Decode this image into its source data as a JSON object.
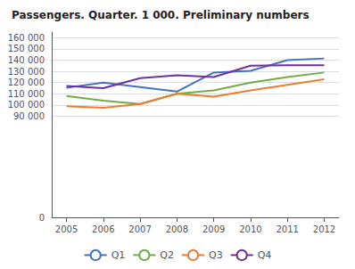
{
  "chart_data": {
    "type": "line",
    "title": "Passengers. Quarter. 1 000. Preliminary numbers",
    "x": [
      2005,
      2006,
      2007,
      2008,
      2009,
      2010,
      2011,
      2012
    ],
    "xlim": [
      2004.6,
      2012.4
    ],
    "xticks": [
      2005,
      2006,
      2007,
      2008,
      2009,
      2010,
      2011,
      2012
    ],
    "ylim": [
      0,
      165000
    ],
    "yticks": [
      0,
      {
        "value": 90000,
        "label": "90 000"
      },
      {
        "value": 100000,
        "label": "100 000"
      },
      {
        "value": 110000,
        "label": "110 000"
      },
      {
        "value": 120000,
        "label": "120 000"
      },
      {
        "value": 130000,
        "label": "130 000"
      },
      {
        "value": 140000,
        "label": "140 000"
      },
      {
        "value": 150000,
        "label": "150 000"
      },
      {
        "value": 160000,
        "label": "160 000"
      }
    ],
    "grid": "y",
    "legend": "bottom",
    "series": [
      {
        "name": "Q1",
        "color": "#4472c4",
        "values": [
          115500,
          120000,
          116000,
          112000,
          129000,
          130500,
          140000,
          141500
        ]
      },
      {
        "name": "Q2",
        "color": "#70ad47",
        "values": [
          108000,
          104000,
          101000,
          110000,
          113000,
          120000,
          125000,
          129000
        ]
      },
      {
        "name": "Q3",
        "color": "#ed7d31",
        "values": [
          99000,
          97500,
          101000,
          110000,
          107500,
          113000,
          118000,
          123000
        ]
      },
      {
        "name": "Q4",
        "color": "#7030a0",
        "values": [
          117000,
          115000,
          124000,
          126500,
          125000,
          135000,
          135500,
          135500
        ]
      }
    ]
  }
}
